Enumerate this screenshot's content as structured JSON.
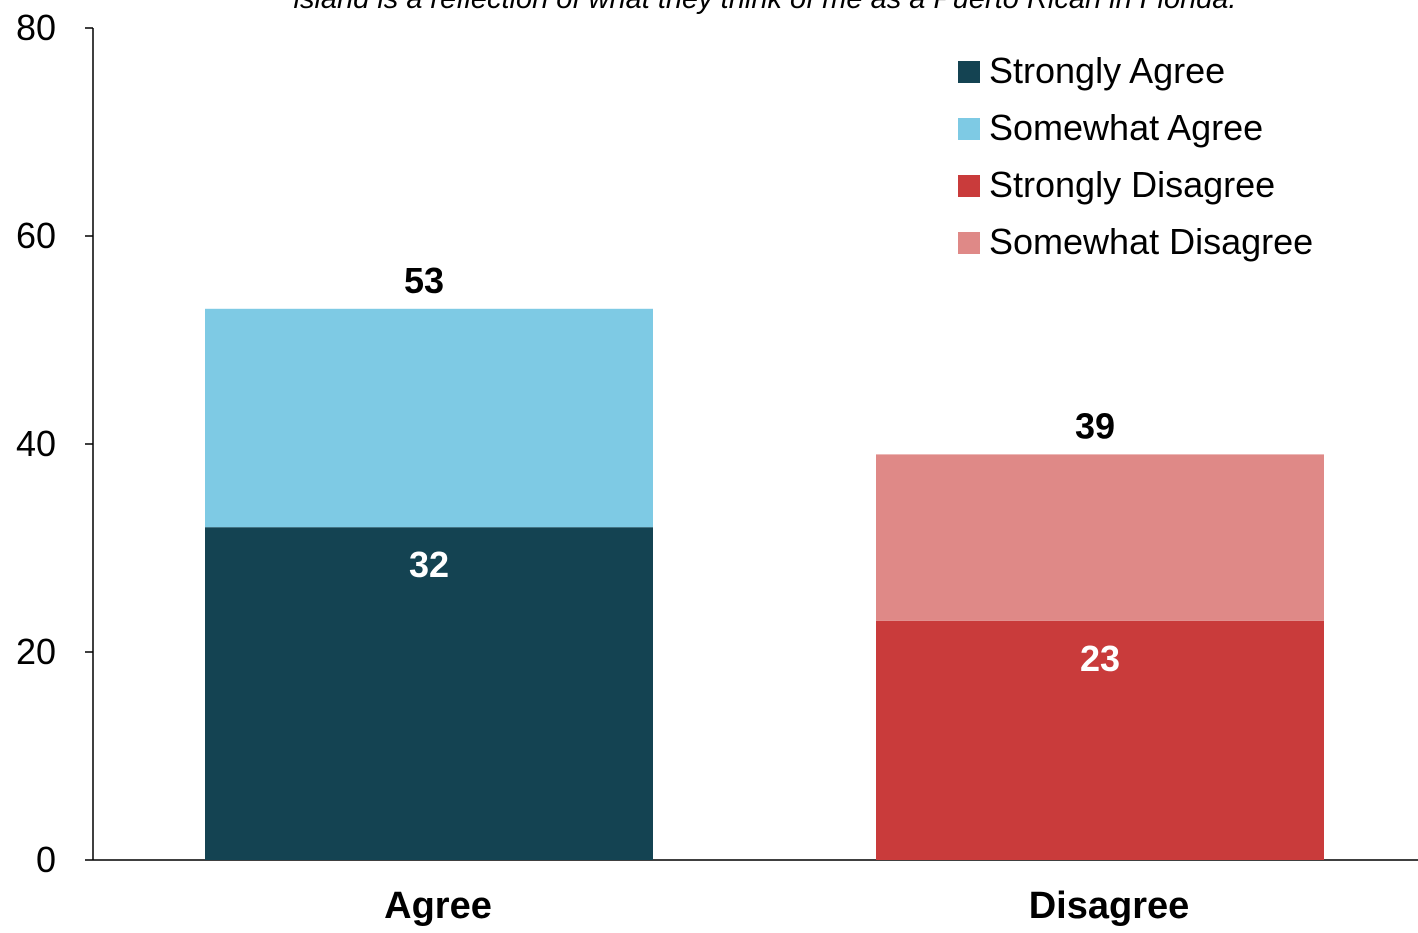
{
  "chart_data": {
    "type": "bar",
    "stacked": true,
    "title": "island is a reflection of what they think of me as a Puerto Rican in Florida.",
    "categories": [
      "Agree",
      "Disagree"
    ],
    "series": [
      {
        "name": "Strongly Agree",
        "values": [
          32,
          0
        ],
        "color": "#144352",
        "label_color": "#ffffff"
      },
      {
        "name": "Somewhat Agree",
        "values": [
          21,
          0
        ],
        "color": "#7ecae4",
        "label_color": "#ffffff"
      },
      {
        "name": "Strongly Disagree",
        "values": [
          0,
          23
        ],
        "color": "#c93b3b",
        "label_color": "#ffffff"
      },
      {
        "name": "Somewhat Disagree",
        "values": [
          0,
          16
        ],
        "color": "#df8987",
        "label_color": "#ffffff"
      }
    ],
    "inner_labels": [
      {
        "category": "Agree",
        "series": "Strongly Agree",
        "value": 32,
        "text": "32"
      },
      {
        "category": "Disagree",
        "series": "Strongly Disagree",
        "value": 23,
        "text": "23"
      }
    ],
    "totals": [
      {
        "category": "Agree",
        "value": 53,
        "text": "53"
      },
      {
        "category": "Disagree",
        "value": 39,
        "text": "39"
      }
    ],
    "yticks": [
      0,
      20,
      40,
      60,
      80
    ],
    "ylim": [
      0,
      80
    ],
    "xlabel": "",
    "ylabel": "",
    "grid": false,
    "legend_position": "top-right"
  }
}
